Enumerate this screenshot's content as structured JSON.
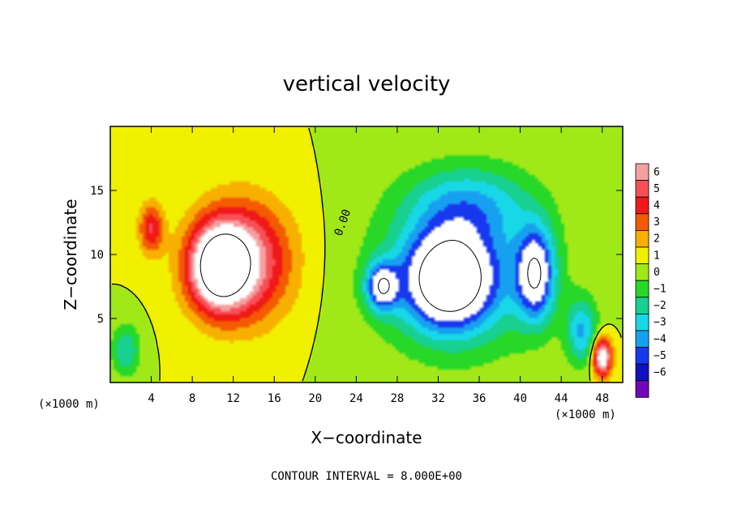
{
  "chart_data": {
    "type": "heatmap",
    "title": "vertical velocity",
    "xlabel": "X−coordinate",
    "ylabel": "Z−coordinate",
    "x_unit": "(×1000 m)",
    "x_unit_right": "(×1000 m)",
    "xlim": [
      0,
      50
    ],
    "ylim": [
      0,
      20
    ],
    "x_ticks": [
      4,
      8,
      12,
      16,
      20,
      24,
      28,
      32,
      36,
      40,
      44,
      48
    ],
    "y_ticks": [
      5,
      10,
      15
    ],
    "colorbar": {
      "levels": [
        6,
        5,
        4,
        3,
        2,
        1,
        0,
        -1,
        -2,
        -3,
        -4,
        -5,
        -6
      ],
      "labels": [
        "6",
        "5",
        "4",
        "3",
        "2",
        "1",
        "0",
        "−1",
        "−2",
        "−3",
        "−4",
        "−5",
        "−6"
      ],
      "colors": [
        "#f4a0a0",
        "#f85058",
        "#f01818",
        "#f45a00",
        "#f8b000",
        "#f0f000",
        "#a0e818",
        "#28d828",
        "#18d090",
        "#18d8e8",
        "#18a0f0",
        "#1838f0",
        "#1010c0",
        "#7008b8"
      ]
    },
    "zero_contour_label": "0.00",
    "footer": "CONTOUR INTERVAL = 8.000E+00",
    "features": [
      {
        "x": 10.5,
        "z": 9.0,
        "sx": 2.8,
        "sz": 3.2,
        "amp": 8
      },
      {
        "x": 13.0,
        "z": 9.5,
        "sx": 4.5,
        "sz": 4.5,
        "amp": 6
      },
      {
        "x": 4.0,
        "z": 12.0,
        "sx": 1.2,
        "sz": 2.0,
        "amp": 4
      },
      {
        "x": 1.5,
        "z": 2.5,
        "sx": 1.4,
        "sz": 2.0,
        "amp": -3
      },
      {
        "x": 33.0,
        "z": 8.0,
        "sx": 4.0,
        "sz": 3.5,
        "amp": -8
      },
      {
        "x": 41.5,
        "z": 8.5,
        "sx": 1.8,
        "sz": 3.5,
        "amp": -7
      },
      {
        "x": 26.5,
        "z": 7.5,
        "sx": 1.5,
        "sz": 1.8,
        "amp": -6.5
      },
      {
        "x": 34.0,
        "z": 8.5,
        "sx": 8.0,
        "sz": 6.0,
        "amp": -4
      },
      {
        "x": 35.0,
        "z": 14.0,
        "sx": 6.0,
        "sz": 3.0,
        "amp": -3
      },
      {
        "x": 48.0,
        "z": 2.0,
        "sx": 0.9,
        "sz": 1.5,
        "amp": 8
      },
      {
        "x": 46.0,
        "z": 4.0,
        "sx": 1.5,
        "sz": 2.5,
        "amp": -4
      }
    ]
  }
}
